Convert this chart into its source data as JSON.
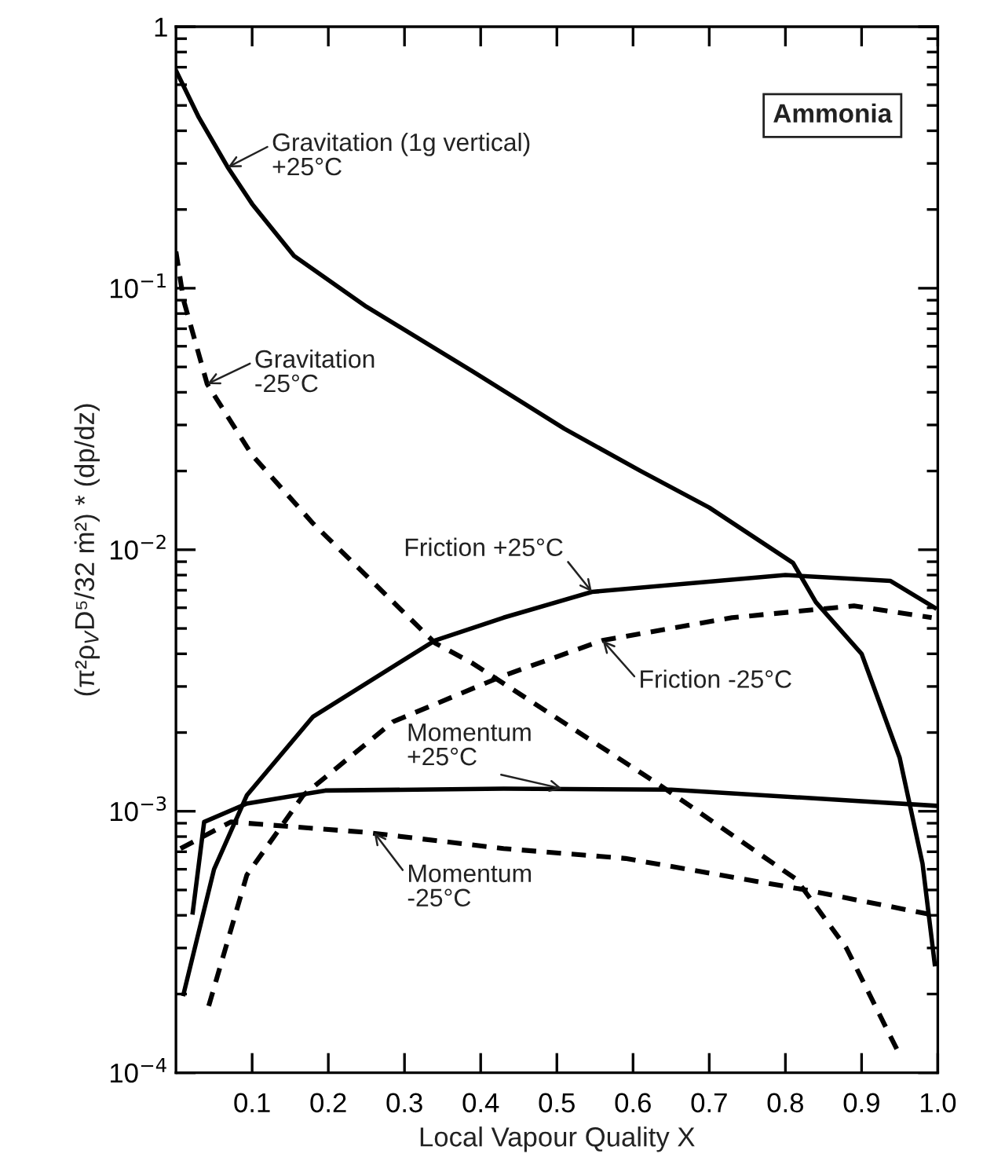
{
  "chart_data": {
    "type": "line",
    "xlabel": "Local Vapour Quality X",
    "ylabel": "(π²ρ$_{V}$D⁵/32 ṁ²) * (dp/dz)",
    "log": "y",
    "grid": false,
    "marker": "none",
    "xlim": [
      0,
      1.0
    ],
    "xticks": [
      0.1,
      0.2,
      0.3,
      0.4,
      0.5,
      0.6,
      0.7,
      0.8,
      0.9,
      {
        "value": 1.0,
        "label": "1.0"
      }
    ],
    "ylim": [
      0.0001,
      1
    ],
    "yticks": [
      {
        "value": 0.0001,
        "label": "10$^{−4}$"
      },
      {
        "value": 0.001,
        "label": "10$^{−3}$"
      },
      {
        "value": 0.01,
        "label": "10$^{−2}$"
      },
      {
        "value": 0.1,
        "label": "10$^{−1}$"
      },
      1
    ],
    "series": [
      {
        "color": "#000000",
        "line_style": "solid",
        "x": [
          0,
          0.03,
          0.068,
          0.1,
          0.155,
          0.25,
          0.39,
          0.51,
          0.61,
          0.7,
          0.81,
          0.84,
          0.9,
          0.95,
          0.98,
          0.996
        ],
        "values": [
          0.68,
          0.45,
          0.29,
          0.21,
          0.133,
          0.085,
          0.048,
          0.029,
          0.02,
          0.0145,
          0.0089,
          0.0063,
          0.004,
          0.0016,
          0.00063,
          0.00026
        ]
      },
      {
        "color": "#000000",
        "line_style": "dashed",
        "x": [
          0,
          0.01,
          0.041,
          0.1,
          0.18,
          0.34,
          0.388,
          0.635,
          0.814,
          0.88,
          0.95
        ],
        "values": [
          0.138,
          0.09,
          0.043,
          0.023,
          0.0126,
          0.0044,
          0.0037,
          0.00126,
          0.00055,
          0.0003,
          0.000117
        ]
      },
      {
        "color": "#000000",
        "line_style": "solid",
        "x": [
          0.01,
          0.05,
          0.093,
          0.18,
          0.34,
          0.43,
          0.546,
          0.8,
          0.938,
          0.996
        ],
        "values": [
          0.0002,
          0.0006,
          0.00115,
          0.0023,
          0.0045,
          0.0055,
          0.0069,
          0.008,
          0.0076,
          0.006
        ]
      },
      {
        "color": "#000000",
        "line_style": "dashed",
        "x": [
          0.043,
          0.093,
          0.167,
          0.285,
          0.43,
          0.56,
          0.73,
          0.89,
          0.992
        ],
        "values": [
          0.00018,
          0.00057,
          0.00115,
          0.0022,
          0.0033,
          0.0045,
          0.0055,
          0.0061,
          0.0055
        ]
      },
      {
        "color": "#000000",
        "line_style": "solid",
        "x": [
          0.022,
          0.037,
          0.093,
          0.196,
          0.43,
          0.65,
          0.996
        ],
        "values": [
          0.00041,
          0.00091,
          0.00107,
          0.0012,
          0.00122,
          0.00121,
          0.00105
        ]
      },
      {
        "color": "#000000",
        "line_style": "dashed",
        "x": [
          0.006,
          0.072,
          0.25,
          0.43,
          0.59,
          0.827,
          0.996
        ],
        "values": [
          0.00072,
          0.00091,
          0.00083,
          0.00072,
          0.00066,
          0.0005,
          0.0004
        ]
      }
    ],
    "annotations": [
      {
        "text": "Gravitation (1g vertical)\n+25°C",
        "x": 0.068,
        "y": 0.29
      },
      {
        "text": "Gravitation\n-25°C",
        "x": 0.041,
        "y": 0.043
      },
      {
        "text": "Friction +25°C",
        "x": 0.546,
        "y": 0.0069
      },
      {
        "text": "Friction -25°C",
        "x": 0.56,
        "y": 0.0045
      },
      {
        "text": "Momentum\n+25°C",
        "x": 0.507,
        "y": 0.00122
      },
      {
        "text": "Momentum\n-25°C",
        "x": 0.26,
        "y": 0.00083
      },
      "Ammonia"
    ]
  }
}
